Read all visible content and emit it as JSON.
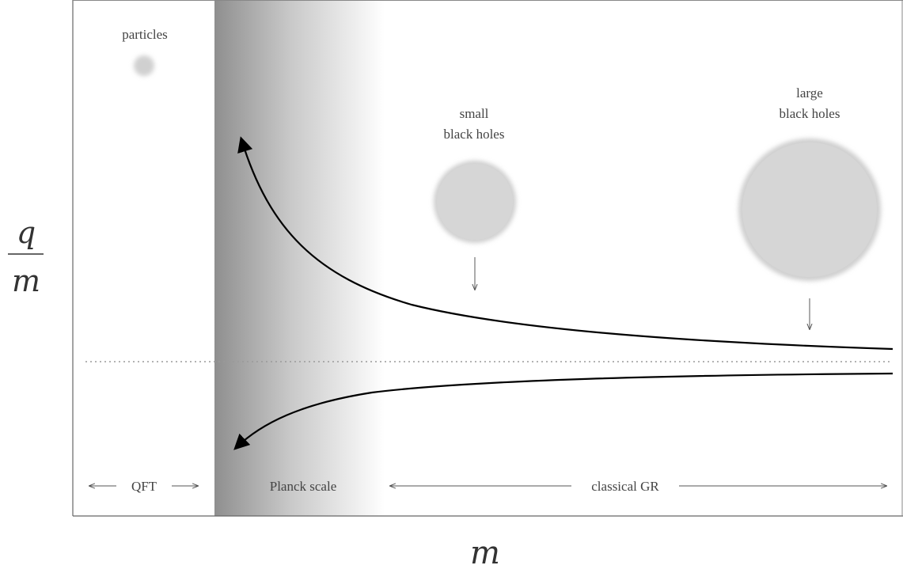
{
  "axes": {
    "y_label_numerator": "q",
    "y_label_denominator": "m",
    "x_label": "m"
  },
  "objects": {
    "particles": "particles",
    "small_black_holes_line1": "small",
    "small_black_holes_line2": "black holes",
    "large_black_holes_line1": "large",
    "large_black_holes_line2": "black holes"
  },
  "regimes": {
    "qft": "QFT",
    "planck": "Planck scale",
    "classical_gr": "classical GR"
  },
  "colors": {
    "planck_band_dark": "#8f8f8f",
    "blob_fill": "#d4d4d4",
    "curve": "#000000",
    "dotted_line": "#9a9a9a",
    "frame": "#666666"
  }
}
